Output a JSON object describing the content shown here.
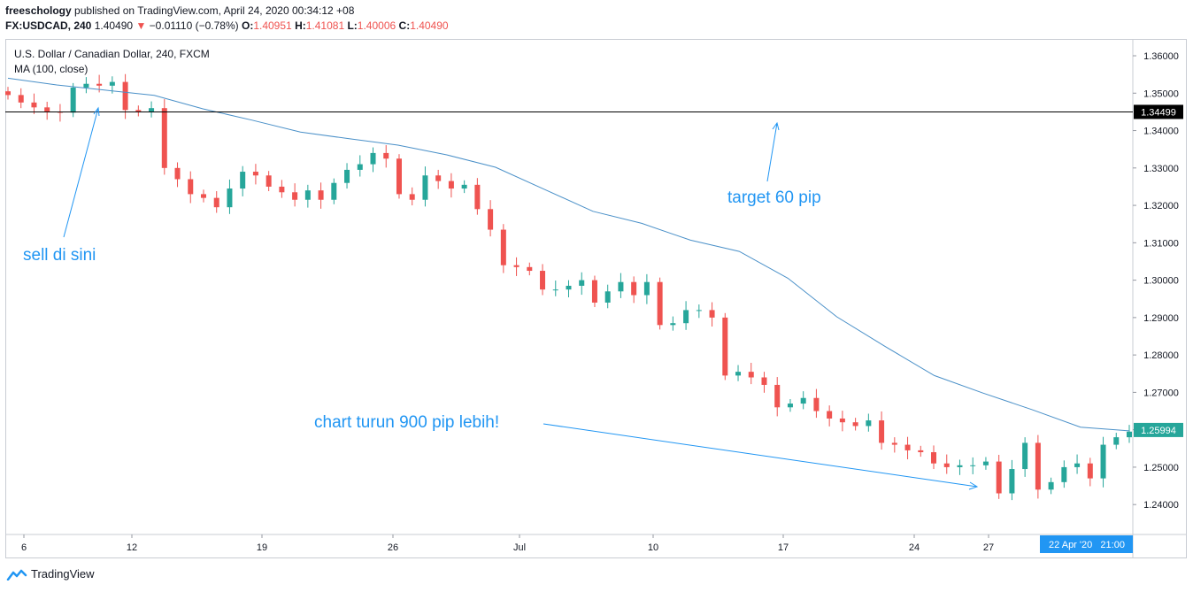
{
  "header": {
    "author": "freeschology",
    "published": "published on TradingView.com, April 24, 2020 00:34:12 +08",
    "symbol": "FX:USDCAD, 240",
    "last": "1.40490",
    "change": "−0.01110 (−0.78%)",
    "o_label": "O:",
    "o_value": "1.40951",
    "h_label": "H:",
    "h_value": "1.41081",
    "l_label": "L:",
    "l_value": "1.40006",
    "c_label": "C:",
    "c_value": "1.40490"
  },
  "legend": {
    "symbol_title": "U.S. Dollar / Canadian Dollar, 240, FXCM",
    "ma_label": "MA (100, close)"
  },
  "annotations": {
    "sell": "sell di sini",
    "target": "target 60 pip",
    "drop": "chart turun 900 pip lebih!"
  },
  "price_tags": {
    "level": "1.34499",
    "last": "1.25994"
  },
  "time_tag": "22 Apr '20   21:00",
  "footer": {
    "brand": "TradingView"
  },
  "colors": {
    "up": "#26a69a",
    "down": "#ef5350",
    "ma": "#4a90c8",
    "annotation": "#2196f3",
    "level_line": "#000000",
    "last_tag": "#26a69a",
    "time_tag": "#2196f3"
  },
  "chart_data": {
    "type": "line",
    "title": "U.S. Dollar / Canadian Dollar, 240, FXCM",
    "xlabel": "",
    "ylabel": "",
    "ylim": [
      1.232,
      1.3645
    ],
    "yticks": [
      "1.36000",
      "1.35000",
      "1.34000",
      "1.33000",
      "1.32000",
      "1.31000",
      "1.30000",
      "1.29000",
      "1.28000",
      "1.27000",
      "1.26000",
      "1.25000",
      "1.24000"
    ],
    "ytick_values": [
      1.36,
      1.35,
      1.34,
      1.33,
      1.32,
      1.31,
      1.3,
      1.29,
      1.28,
      1.27,
      1.26,
      1.25,
      1.24
    ],
    "xticks": [
      "6",
      "12",
      "19",
      "26",
      "Jul",
      "10",
      "17",
      "24",
      "27"
    ],
    "horizontal_level": 1.34499,
    "series": [
      {
        "name": "USDCAD close (approx.)",
        "values": [
          1.3495,
          1.3475,
          1.3462,
          1.345,
          1.3448,
          1.3515,
          1.3525,
          1.352,
          1.353,
          1.3455,
          1.345,
          1.346,
          1.33,
          1.327,
          1.323,
          1.322,
          1.3195,
          1.3245,
          1.329,
          1.328,
          1.325,
          1.3235,
          1.3215,
          1.324,
          1.3215,
          1.326,
          1.3295,
          1.331,
          1.334,
          1.3325,
          1.323,
          1.3215,
          1.328,
          1.3265,
          1.3245,
          1.3255,
          1.319,
          1.3135,
          1.304,
          1.3035,
          1.3025,
          1.2975,
          1.2975,
          1.2985,
          1.3,
          1.294,
          1.297,
          1.2995,
          1.296,
          1.2995,
          1.288,
          1.2885,
          1.292,
          1.292,
          1.29,
          1.2745,
          1.2755,
          1.274,
          1.272,
          1.266,
          1.267,
          1.2685,
          1.265,
          1.263,
          1.262,
          1.261,
          1.2625,
          1.2565,
          1.256,
          1.2545,
          1.254,
          1.251,
          1.25,
          1.2505,
          1.2505,
          1.2515,
          1.243,
          1.2495,
          1.2565,
          1.244,
          1.246,
          1.25,
          1.251,
          1.247,
          1.256,
          1.258,
          1.2595
        ]
      },
      {
        "name": "MA (100, close)",
        "values": [
          1.354,
          1.3522,
          1.3508,
          1.3494,
          1.3458,
          1.3428,
          1.3396,
          1.3378,
          1.3361,
          1.3335,
          1.3302,
          1.3243,
          1.3184,
          1.3152,
          1.3107,
          1.3077,
          1.3005,
          1.2902,
          1.2822,
          1.2745,
          1.2698,
          1.2654,
          1.2607,
          1.2597
        ]
      }
    ]
  }
}
